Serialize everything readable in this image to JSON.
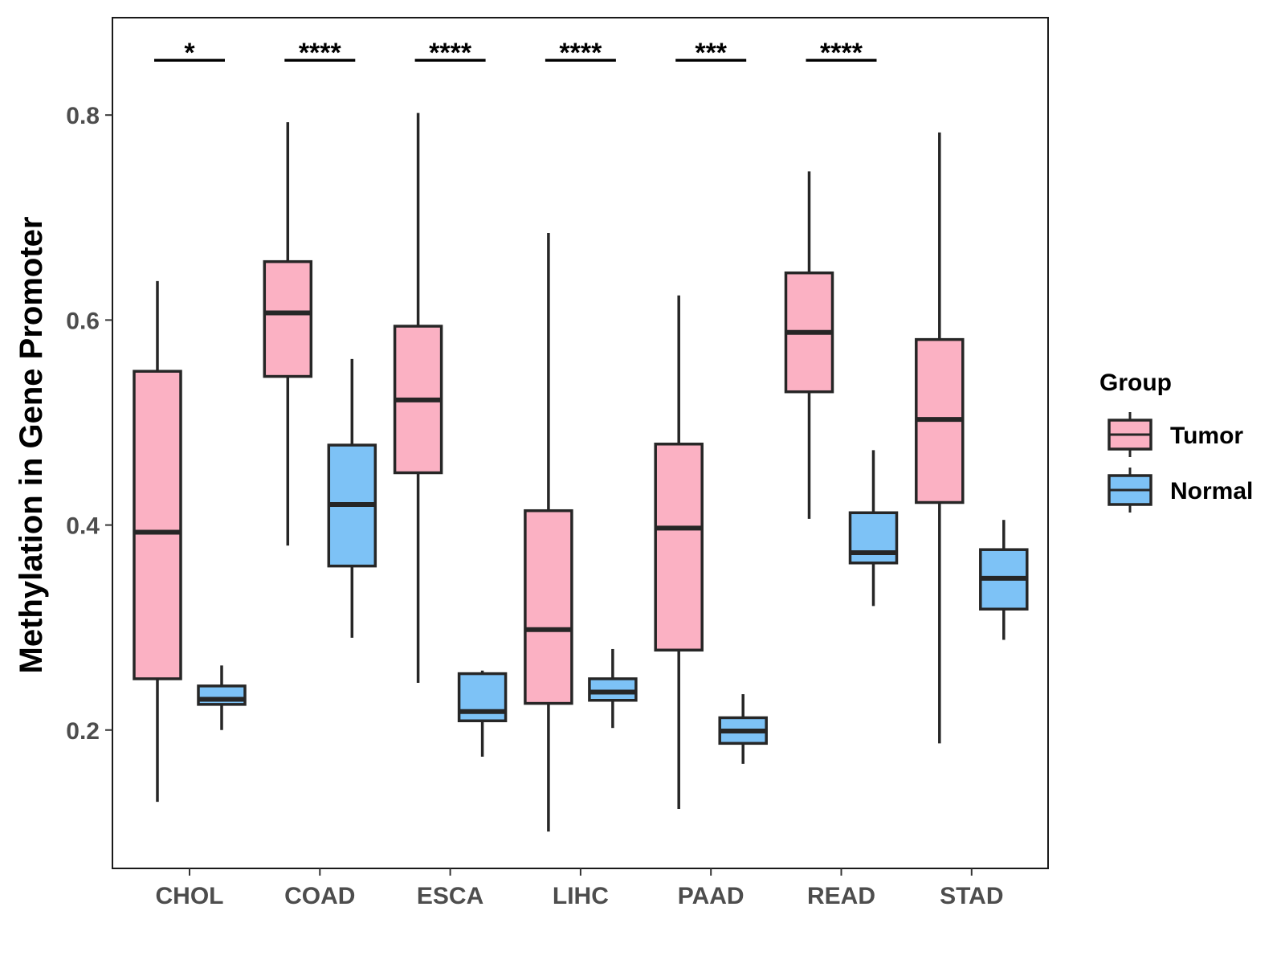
{
  "chart_data": {
    "type": "boxplot",
    "title": "",
    "xlabel": "",
    "ylabel": "Methylation in Gene Promoter",
    "ylim": [
      0.065,
      0.895
    ],
    "yticks": [
      0.2,
      0.4,
      0.6,
      0.8
    ],
    "ytick_labels": [
      "0.2",
      "0.4",
      "0.6",
      "0.8"
    ],
    "categories": [
      "CHOL",
      "COAD",
      "ESCA",
      "LIHC",
      "PAAD",
      "READ",
      "STAD"
    ],
    "legend": {
      "title": "Group",
      "position": "right",
      "entries": [
        {
          "name": "Tumor",
          "color": "#fbb1c3"
        },
        {
          "name": "Normal",
          "color": "#7dc2f6"
        }
      ]
    },
    "series": [
      {
        "name": "Tumor",
        "color": "#fbb1c3",
        "boxes": [
          {
            "category": "CHOL",
            "min": 0.13,
            "q1": 0.25,
            "median": 0.393,
            "q3": 0.55,
            "max": 0.638
          },
          {
            "category": "COAD",
            "min": 0.38,
            "q1": 0.545,
            "median": 0.607,
            "q3": 0.657,
            "max": 0.793
          },
          {
            "category": "ESCA",
            "min": 0.246,
            "q1": 0.451,
            "median": 0.522,
            "q3": 0.594,
            "max": 0.802
          },
          {
            "category": "LIHC",
            "min": 0.101,
            "q1": 0.226,
            "median": 0.298,
            "q3": 0.414,
            "max": 0.685
          },
          {
            "category": "PAAD",
            "min": 0.123,
            "q1": 0.278,
            "median": 0.397,
            "q3": 0.479,
            "max": 0.624
          },
          {
            "category": "READ",
            "min": 0.406,
            "q1": 0.53,
            "median": 0.588,
            "q3": 0.646,
            "max": 0.745
          },
          {
            "category": "STAD",
            "min": 0.187,
            "q1": 0.422,
            "median": 0.503,
            "q3": 0.581,
            "max": 0.783
          }
        ]
      },
      {
        "name": "Normal",
        "color": "#7dc2f6",
        "boxes": [
          {
            "category": "CHOL",
            "min": 0.2,
            "q1": 0.225,
            "median": 0.23,
            "q3": 0.243,
            "max": 0.263
          },
          {
            "category": "COAD",
            "min": 0.29,
            "q1": 0.36,
            "median": 0.42,
            "q3": 0.478,
            "max": 0.562
          },
          {
            "category": "ESCA",
            "min": 0.174,
            "q1": 0.209,
            "median": 0.218,
            "q3": 0.255,
            "max": 0.258
          },
          {
            "category": "LIHC",
            "min": 0.202,
            "q1": 0.229,
            "median": 0.237,
            "q3": 0.25,
            "max": 0.279
          },
          {
            "category": "PAAD",
            "min": 0.167,
            "q1": 0.187,
            "median": 0.199,
            "q3": 0.212,
            "max": 0.235
          },
          {
            "category": "READ",
            "min": 0.321,
            "q1": 0.363,
            "median": 0.373,
            "q3": 0.412,
            "max": 0.473
          },
          {
            "category": "STAD",
            "min": 0.288,
            "q1": 0.318,
            "median": 0.348,
            "q3": 0.376,
            "max": 0.405
          }
        ]
      }
    ],
    "significance": [
      {
        "category": "CHOL",
        "label": "*"
      },
      {
        "category": "COAD",
        "label": "****"
      },
      {
        "category": "ESCA",
        "label": "****"
      },
      {
        "category": "LIHC",
        "label": "****"
      },
      {
        "category": "PAAD",
        "label": "***"
      },
      {
        "category": "READ",
        "label": "****"
      }
    ]
  }
}
